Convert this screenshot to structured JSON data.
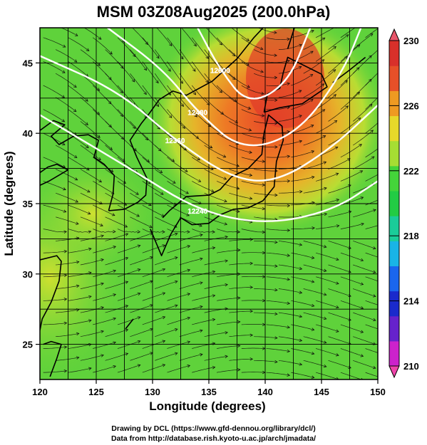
{
  "header": {
    "title": "MSM 03Z08Aug2025 (200.0hPa)"
  },
  "axes": {
    "xlabel": "Longitude (degrees)",
    "ylabel": "Latitude  (degrees)",
    "xticks": [
      "120",
      "125",
      "130",
      "135",
      "140",
      "145",
      "150"
    ],
    "yticks": [
      "25",
      "30",
      "35",
      "40",
      "45"
    ]
  },
  "colorbar": {
    "ticks": [
      "230",
      "226",
      "222",
      "218",
      "214",
      "210"
    ],
    "colors": [
      "#cc22cc",
      "#6622cc",
      "#1a2acc",
      "#1a66ee",
      "#19b4e6",
      "#1acc99",
      "#22cc44",
      "#44d43a",
      "#a6dd33",
      "#e6d82a",
      "#ee9a22",
      "#e65028",
      "#d8302a"
    ]
  },
  "contour_labels": [
    "12240",
    "12360",
    "12480",
    "12600"
  ],
  "credits": {
    "line1": "Drawing by DCL (https://www.gfd-dennou.org/library/dcl/)",
    "line2": "Data from http://database.rish.kyoto-u.ac.jp/arch/jmadata/"
  },
  "chart_data": {
    "type": "heatmap",
    "title": "MSM 03Z08Aug2025 (200.0hPa)",
    "xlabel": "Longitude (degrees)",
    "ylabel": "Latitude  (degrees)",
    "xlim": [
      120,
      150
    ],
    "ylim": [
      22.5,
      47.5
    ],
    "colorbar_range": [
      210,
      230
    ],
    "colorbar_ticks": [
      210,
      214,
      218,
      222,
      226,
      230
    ],
    "field_max_region": {
      "lon": [
        136,
        146
      ],
      "lat": [
        37,
        47.5
      ],
      "value_approx": 228
    },
    "field_typical": 223,
    "contours": [
      {
        "label": "12240",
        "lon_at_lat": [
          [
            120,
            41.3
          ],
          [
            128,
            37.5
          ],
          [
            134,
            34.5
          ],
          [
            140,
            33.5
          ],
          [
            146,
            34.5
          ],
          [
            150,
            36.6
          ]
        ]
      },
      {
        "label": "12360",
        "lon_at_lat": [
          [
            120,
            45.5
          ],
          [
            127,
            43.0
          ],
          [
            132,
            39.5
          ],
          [
            137,
            36.8
          ],
          [
            141,
            36.5
          ],
          [
            146,
            39.0
          ],
          [
            150,
            42.0
          ]
        ]
      },
      {
        "label": "12480",
        "lon_at_lat": [
          [
            126,
            47.5
          ],
          [
            131,
            44.5
          ],
          [
            134,
            41.5
          ],
          [
            138,
            38.7
          ],
          [
            143,
            40.0
          ],
          [
            147,
            44.5
          ],
          [
            148.5,
            47.5
          ]
        ]
      },
      {
        "label": "12600",
        "lon_at_lat": [
          [
            134,
            47.5
          ],
          [
            136,
            44.5
          ],
          [
            138.5,
            42.0
          ],
          [
            142,
            43.5
          ],
          [
            144,
            47.5
          ]
        ]
      }
    ],
    "grid": true,
    "streamlines": true
  }
}
